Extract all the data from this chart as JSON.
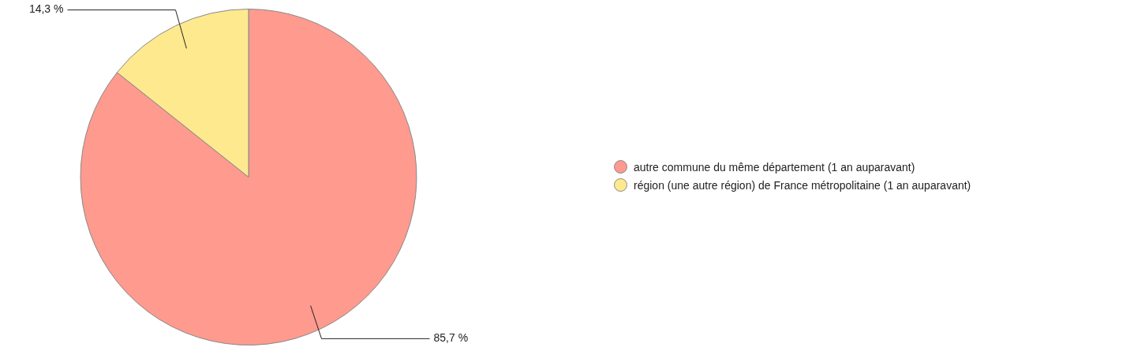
{
  "chart_data": {
    "type": "pie",
    "categories": [
      "autre commune du même département (1 an auparavant)",
      "région (une autre région) de France métropolitaine (1 an auparavant)"
    ],
    "values": [
      85.7,
      14.3
    ],
    "colors": [
      "#ff9a8f",
      "#ffe98f"
    ],
    "value_labels": [
      "85,7 %",
      "14,3 %"
    ],
    "legend": "right"
  }
}
